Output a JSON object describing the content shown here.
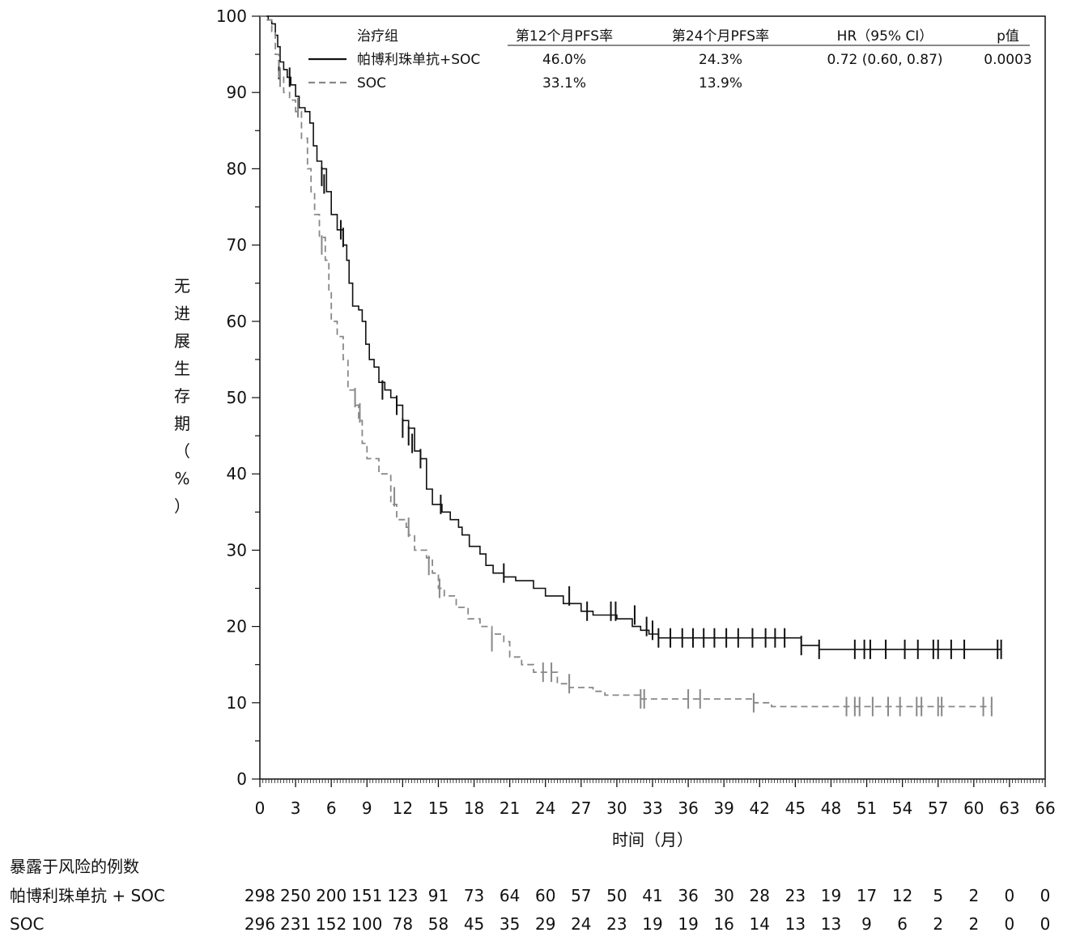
{
  "chart_data": {
    "type": "line",
    "subtype": "kaplan-meier",
    "title": "",
    "xlabel": "时间（月）",
    "ylabel": "无进展生存期（%）",
    "xlim": [
      0,
      66
    ],
    "ylim": [
      0,
      100
    ],
    "xticks": [
      0,
      3,
      6,
      9,
      12,
      15,
      18,
      21,
      24,
      27,
      30,
      33,
      36,
      39,
      42,
      45,
      48,
      51,
      54,
      57,
      60,
      63,
      66
    ],
    "yticks": [
      0,
      10,
      20,
      30,
      40,
      50,
      60,
      70,
      80,
      90,
      100
    ],
    "grid": false,
    "legend": {
      "placement": "top-right",
      "headers": [
        "治疗组",
        "第12个月PFS率",
        "第24个月PFS率",
        "HR（95% CI）",
        "p值"
      ],
      "rows": [
        {
          "name": "帕博利珠单抗+SOC",
          "pfs12": "46.0%",
          "pfs24": "24.3%",
          "hr": "0.72 (0.60, 0.87)",
          "p": "0.0003"
        },
        {
          "name": "SOC",
          "pfs12": "33.1%",
          "pfs24": "13.9%",
          "hr": "",
          "p": ""
        }
      ]
    },
    "series": [
      {
        "name": "帕博利珠单抗+SOC",
        "color": "#111111",
        "dash": "none",
        "points": [
          [
            0,
            100
          ],
          [
            0.3,
            100
          ],
          [
            0.7,
            99.5
          ],
          [
            1,
            99
          ],
          [
            1.3,
            97.5
          ],
          [
            1.5,
            96
          ],
          [
            1.7,
            94
          ],
          [
            2,
            93
          ],
          [
            2.3,
            92
          ],
          [
            2.6,
            91
          ],
          [
            3,
            89.5
          ],
          [
            3.3,
            88
          ],
          [
            3.8,
            87.5
          ],
          [
            4.2,
            86
          ],
          [
            4.5,
            83
          ],
          [
            4.8,
            81
          ],
          [
            5.2,
            80
          ],
          [
            5.6,
            77
          ],
          [
            6,
            74
          ],
          [
            6.5,
            72
          ],
          [
            7,
            70
          ],
          [
            7.3,
            68
          ],
          [
            7.5,
            65
          ],
          [
            7.8,
            62
          ],
          [
            8.3,
            61.5
          ],
          [
            8.6,
            60
          ],
          [
            8.9,
            57
          ],
          [
            9.2,
            55
          ],
          [
            9.6,
            54
          ],
          [
            10,
            52
          ],
          [
            10.5,
            51
          ],
          [
            11,
            50
          ],
          [
            11.5,
            49
          ],
          [
            12,
            47
          ],
          [
            12.5,
            46
          ],
          [
            13,
            43
          ],
          [
            13.5,
            42
          ],
          [
            14,
            38
          ],
          [
            14.5,
            36
          ],
          [
            15.3,
            35
          ],
          [
            16,
            34
          ],
          [
            16.7,
            33
          ],
          [
            17,
            32
          ],
          [
            17.6,
            30.5
          ],
          [
            18.5,
            29.5
          ],
          [
            19,
            28
          ],
          [
            19.6,
            27
          ],
          [
            20.5,
            26.5
          ],
          [
            21.5,
            26
          ],
          [
            23,
            25
          ],
          [
            24,
            24
          ],
          [
            25.5,
            23
          ],
          [
            27,
            22
          ],
          [
            28,
            21.5
          ],
          [
            30,
            21
          ],
          [
            31.3,
            20
          ],
          [
            32,
            19.5
          ],
          [
            32.7,
            19
          ],
          [
            33.5,
            18.5
          ],
          [
            45,
            18.5
          ],
          [
            45.5,
            17.5
          ],
          [
            47,
            17
          ],
          [
            62.3,
            17
          ]
        ],
        "censors": [
          [
            1.6,
            93
          ],
          [
            2.5,
            92
          ],
          [
            3.2,
            88
          ],
          [
            5.2,
            79
          ],
          [
            5.4,
            78
          ],
          [
            6.8,
            72
          ],
          [
            7.0,
            71
          ],
          [
            10.3,
            51
          ],
          [
            11.5,
            49
          ],
          [
            12.0,
            46
          ],
          [
            12.5,
            45
          ],
          [
            12.8,
            44
          ],
          [
            13.5,
            42
          ],
          [
            15.2,
            36
          ],
          [
            20.5,
            27
          ],
          [
            26,
            24
          ],
          [
            27.5,
            22
          ],
          [
            29.5,
            22
          ],
          [
            29.9,
            22
          ],
          [
            31.5,
            21.5
          ],
          [
            32.5,
            20
          ],
          [
            33,
            19.5
          ],
          [
            33.5,
            18.5
          ],
          [
            34.5,
            18.5
          ],
          [
            35.5,
            18.5
          ],
          [
            36.4,
            18.5
          ],
          [
            37.3,
            18.5
          ],
          [
            38.2,
            18.5
          ],
          [
            39.2,
            18.5
          ],
          [
            40.2,
            18.5
          ],
          [
            41.4,
            18.5
          ],
          [
            42.5,
            18.5
          ],
          [
            43.3,
            18.5
          ],
          [
            44.1,
            18.5
          ],
          [
            45.5,
            17.5
          ],
          [
            47,
            17
          ],
          [
            50,
            17
          ],
          [
            50.8,
            17
          ],
          [
            51.3,
            17
          ],
          [
            52.6,
            17
          ],
          [
            54.2,
            17
          ],
          [
            55.3,
            17
          ],
          [
            56.6,
            17
          ],
          [
            57,
            17
          ],
          [
            58.1,
            17
          ],
          [
            59.2,
            17
          ],
          [
            62,
            17
          ],
          [
            62.3,
            17
          ]
        ]
      },
      {
        "name": "SOC",
        "color": "#888888",
        "dash": "8,5",
        "points": [
          [
            0,
            100
          ],
          [
            0.5,
            99.5
          ],
          [
            1,
            98
          ],
          [
            1.3,
            95
          ],
          [
            1.6,
            92
          ],
          [
            2,
            90
          ],
          [
            2.5,
            89
          ],
          [
            3,
            87.5
          ],
          [
            3.5,
            84
          ],
          [
            4,
            80
          ],
          [
            4.3,
            77
          ],
          [
            4.6,
            74
          ],
          [
            5,
            71
          ],
          [
            5.5,
            68
          ],
          [
            5.8,
            64
          ],
          [
            6,
            60
          ],
          [
            6.5,
            58
          ],
          [
            7,
            55
          ],
          [
            7.4,
            51
          ],
          [
            8,
            49
          ],
          [
            8.3,
            47
          ],
          [
            8.6,
            44
          ],
          [
            9,
            42
          ],
          [
            10,
            40
          ],
          [
            11,
            36
          ],
          [
            11.5,
            34
          ],
          [
            12.3,
            33
          ],
          [
            12.5,
            32
          ],
          [
            13,
            30
          ],
          [
            14,
            29
          ],
          [
            14.5,
            27
          ],
          [
            15,
            25
          ],
          [
            15.5,
            24
          ],
          [
            16.5,
            22.5
          ],
          [
            17.5,
            21
          ],
          [
            18.5,
            20
          ],
          [
            19.5,
            19
          ],
          [
            20.5,
            18
          ],
          [
            21,
            16
          ],
          [
            22,
            15
          ],
          [
            23,
            14
          ],
          [
            25,
            12.5
          ],
          [
            26,
            12
          ],
          [
            28,
            11.5
          ],
          [
            29,
            11
          ],
          [
            31,
            11
          ],
          [
            32,
            10.5
          ],
          [
            40,
            10.5
          ],
          [
            41.5,
            10
          ],
          [
            43,
            9.5
          ],
          [
            61.5,
            9.5
          ]
        ],
        "censors": [
          [
            1.7,
            92
          ],
          [
            3.2,
            88
          ],
          [
            5.2,
            70
          ],
          [
            8.0,
            50
          ],
          [
            8.4,
            48
          ],
          [
            11.3,
            37
          ],
          [
            12.5,
            33
          ],
          [
            14.2,
            28
          ],
          [
            15.1,
            25
          ],
          [
            19.5,
            18
          ],
          [
            23.8,
            14
          ],
          [
            24.5,
            14
          ],
          [
            26,
            12.5
          ],
          [
            32,
            10.5
          ],
          [
            32.3,
            10.5
          ],
          [
            36,
            10.5
          ],
          [
            37,
            10.5
          ],
          [
            41.5,
            10
          ],
          [
            49.3,
            9.5
          ],
          [
            50,
            9.5
          ],
          [
            50.4,
            9.5
          ],
          [
            51.5,
            9.5
          ],
          [
            52.8,
            9.5
          ],
          [
            53.8,
            9.5
          ],
          [
            55.2,
            9.5
          ],
          [
            55.6,
            9.5
          ],
          [
            57,
            9.5
          ],
          [
            57.3,
            9.5
          ],
          [
            60.8,
            9.5
          ],
          [
            61.5,
            9.5
          ]
        ]
      }
    ],
    "risk_table": {
      "title": "暴露于风险的例数",
      "times": [
        0,
        3,
        6,
        9,
        12,
        15,
        18,
        21,
        24,
        27,
        30,
        33,
        36,
        39,
        42,
        45,
        48,
        51,
        54,
        57,
        60,
        63,
        66
      ],
      "rows": [
        {
          "label": "帕博利珠单抗 + SOC",
          "values": [
            298,
            250,
            200,
            151,
            123,
            91,
            73,
            64,
            60,
            57,
            50,
            41,
            36,
            30,
            28,
            23,
            19,
            17,
            12,
            5,
            2,
            0,
            0
          ]
        },
        {
          "label": "SOC",
          "values": [
            296,
            231,
            152,
            100,
            78,
            58,
            45,
            35,
            29,
            24,
            23,
            19,
            19,
            16,
            14,
            13,
            13,
            9,
            6,
            2,
            2,
            0,
            0
          ]
        }
      ]
    }
  }
}
